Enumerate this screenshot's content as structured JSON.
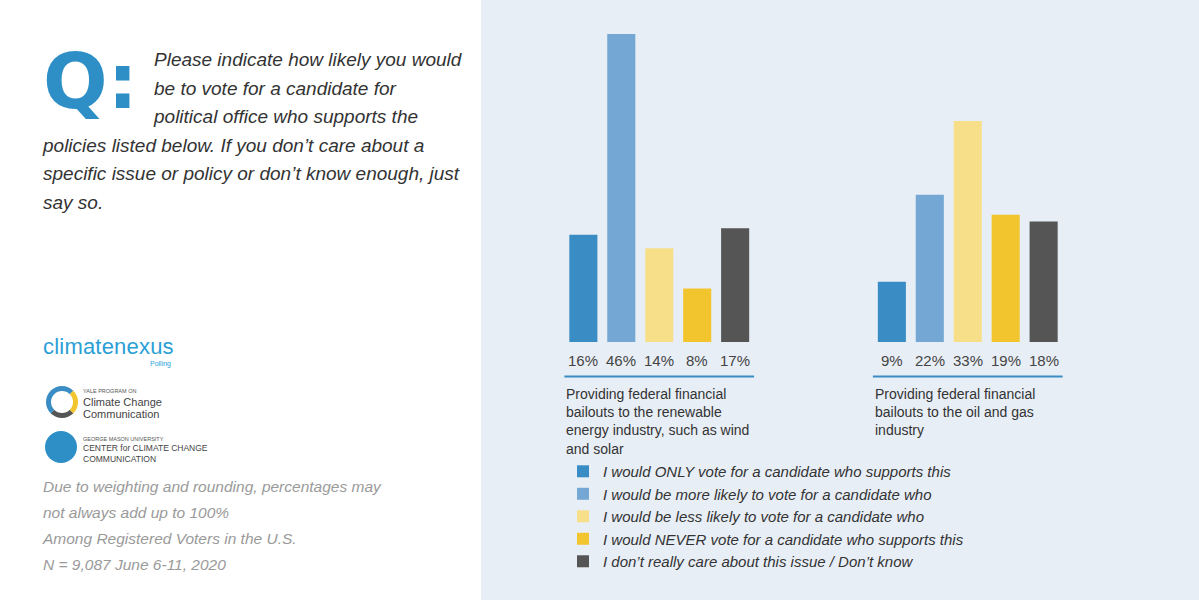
{
  "chart_data": {
    "type": "bar",
    "title": "Please indicate how likely you would be to vote for a candidate for political office who supports the policies listed below. If you don’t care about a specific issue or policy or don’t know enough, just say so.",
    "annotations": [
      "Q:",
      "climatenexus",
      "Polling",
      "YALE PROGRAM ON",
      "Climate Change Communication",
      "GEORGE MASON UNIVERSITY",
      "CENTER for CLIMATE CHANGE COMMUNICATION",
      "Due to weighting and rounding, percentages may not always add up to 100%",
      "Among Registered Voters in the U.S.",
      "N = 9,087 June 6-11, 2020"
    ],
    "categories": [
      "Providing federal financial bailouts to the renewable energy industry, such as wind and solar",
      "Providing federal financial bailouts to the oil and gas industry"
    ],
    "series": [
      {
        "name": "I would ONLY vote for a candidate who supports this",
        "color": "#3a8cc4",
        "values": [
          16,
          9
        ],
        "value_labels": [
          "16%",
          "9%"
        ]
      },
      {
        "name": "I would be more likely to vote for a candidate who",
        "color": "#74a7d3",
        "values": [
          46,
          22
        ],
        "value_labels": [
          "46%",
          "22%"
        ]
      },
      {
        "name": "I would be less likely to vote for a candidate who",
        "color": "#f7df8a",
        "values": [
          14,
          33
        ],
        "value_labels": [
          "14%",
          "33%"
        ]
      },
      {
        "name": "I would NEVER vote for a candidate who supports this",
        "color": "#f2c52e",
        "values": [
          8,
          19
        ],
        "value_labels": [
          "8%",
          "19%"
        ]
      },
      {
        "name": "I don’t really care about this issue / Don’t know",
        "color": "#555555",
        "values": [
          17,
          18
        ],
        "value_labels": [
          "17%",
          "18%"
        ]
      }
    ],
    "ylim": [
      0,
      46
    ],
    "grid": false,
    "tick_labels": false,
    "data_labels": true,
    "legend": "bottom"
  }
}
